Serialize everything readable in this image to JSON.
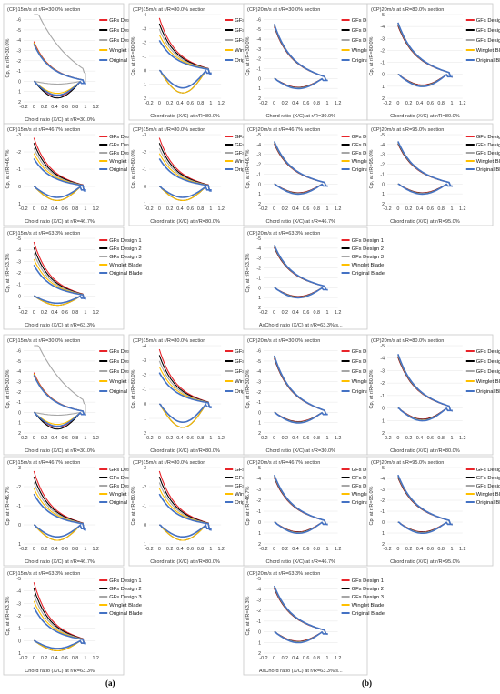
{
  "figure": {
    "label_a": "(a)",
    "label_b": "(b)"
  },
  "colors": {
    "gfs1": "#e8242a",
    "gfs2": "#000000",
    "gfs3": "#a6a6a6",
    "winglet": "#ffc000",
    "original": "#4472c4",
    "grid": "#e6e6e6",
    "frame": "#c8c8c8"
  },
  "legend": [
    "GFs Design 1",
    "GFs Design 2",
    "GFs Design 3",
    "Winglet Blade",
    "Original Blade"
  ],
  "x_ticks": [
    "-0.2",
    "0",
    "0.2",
    "0.4",
    "0.6",
    "0.8",
    "1",
    "1.2"
  ],
  "chart_data": [
    {
      "type": "line",
      "title": "(CP)15m/s at r/R=30.0% section",
      "xlabel": "Chord ratio (X/C) at r/R=30.0%",
      "ylabel": "Cp, at r/R=30.0%",
      "y_ticks": [
        "-6",
        "-5",
        "-4",
        "-3",
        "-2",
        "-1",
        "0",
        "1",
        "2"
      ],
      "xlim": [
        -0.2,
        1.2
      ],
      "ylim": [
        -6.5,
        2
      ],
      "legend_position": "right"
    },
    {
      "type": "line",
      "title": "(CP)15m/s at r/R=80.0% section",
      "xlabel": "Chord ratio (X/C) at r/R=80.0%",
      "ylabel": "Cp, at r/R=80.0%",
      "y_ticks": [
        "-4",
        "-3",
        "-2",
        "-1",
        "0",
        "1",
        "2"
      ],
      "xlim": [
        -0.2,
        1.2
      ],
      "ylim": [
        -4,
        2
      ],
      "legend_position": "top-right"
    },
    {
      "type": "line",
      "title": "(CP)20m/s at r/R=30.0% section",
      "xlabel": "Chord ratio (X/C) at r/R=30.0%",
      "ylabel": "Cp, at r/R=30.0%",
      "y_ticks": [
        "-6",
        "-5",
        "-4",
        "-3",
        "-2",
        "-1",
        "0",
        "1",
        "2"
      ],
      "xlim": [
        -0.2,
        1.2
      ],
      "ylim": [
        -6.5,
        2
      ],
      "legend_position": "top-right"
    },
    {
      "type": "line",
      "title": "(CP)20m/s at r/R=80.0% section",
      "xlabel": "Chord ratio (X/C) at r/R=80.0%",
      "ylabel": "Cp, at r/R=80.0%",
      "y_ticks": [
        "-5",
        "-4",
        "-3",
        "-2",
        "-1",
        "0",
        "1",
        "2"
      ],
      "xlim": [
        -0.2,
        1.2
      ],
      "ylim": [
        -5,
        2
      ],
      "legend_position": "top-right"
    },
    {
      "type": "line",
      "title": "(CP)15m/s at r/R=46.7% section",
      "xlabel": "Chord ratio (X/C) at r/R=46.7%",
      "ylabel": "Cp, at r/R=46.7%",
      "y_ticks": [
        "-3",
        "-2",
        "-1",
        "0",
        "1"
      ],
      "xlim": [
        -0.2,
        1.2
      ],
      "ylim": [
        -3,
        1
      ],
      "legend_position": "top-right"
    },
    {
      "type": "line",
      "title": "(CP)15m/s at r/R=80.0% section",
      "xlabel": "Chord ratio (X/C) at r/R=80.0%",
      "ylabel": "Cp, at r/R=80.0%",
      "y_ticks": [
        "-3",
        "-2",
        "-1",
        "0",
        "1"
      ],
      "xlim": [
        -0.2,
        1.2
      ],
      "ylim": [
        -3,
        1
      ],
      "legend_position": "top-right"
    },
    {
      "type": "line",
      "title": "(CP)20m/s at r/R=46.7% section",
      "xlabel": "Chord ratio (X/C) at r/R=46.7%",
      "ylabel": "Cp, at r/R=46.7%",
      "y_ticks": [
        "-5",
        "-4",
        "-3",
        "-2",
        "-1",
        "0",
        "1",
        "2"
      ],
      "xlim": [
        -0.2,
        1.2
      ],
      "ylim": [
        -5,
        2
      ],
      "legend_position": "top-right"
    },
    {
      "type": "line",
      "title": "(CP)20m/s at r/R=95.0% section",
      "xlabel": "Chord ratio (X/C) at r/R=95.0%",
      "ylabel": "Cp, at r/R=95.0%",
      "y_ticks": [
        "-5",
        "-4",
        "-3",
        "-2",
        "-1",
        "0",
        "1",
        "2"
      ],
      "xlim": [
        -0.2,
        1.2
      ],
      "ylim": [
        -5,
        2
      ],
      "legend_position": "top-right"
    },
    {
      "type": "line",
      "title": "(CP)15m/s at r/R=63.3% section",
      "xlabel": "Chord ratio (X/C) at r/R=63.3%",
      "ylabel": "Cp, at r/R=63.3%",
      "y_ticks": [
        "-5",
        "-4",
        "-3",
        "-2",
        "-1",
        "0",
        "1"
      ],
      "xlim": [
        -0.2,
        1.2
      ],
      "ylim": [
        -5,
        1
      ],
      "legend_position": "top-right"
    },
    {
      "type": "line",
      "title": "(CP)20m/s at r/R=63.3% section",
      "xlabel": "AxChord ratio (X/C) at r/R=63.3%is...",
      "ylabel": "Cp, at r/R=63.3%",
      "y_ticks": [
        "-5",
        "-4",
        "-3",
        "-2",
        "-1",
        "0",
        "1",
        "2"
      ],
      "xlim": [
        -0.2,
        1.2
      ],
      "ylim": [
        -5,
        2
      ],
      "legend_position": "top-right"
    },
    {
      "type": "line",
      "title": "(CP)15m/s at r/R=30.0% section",
      "xlabel": "Chord ratio (X/C) at r/R=30.0%",
      "ylabel": "Cp, at r/R=30.0%",
      "y_ticks": [
        "-6",
        "-5",
        "-4",
        "-3",
        "-2",
        "-1",
        "0",
        "1",
        "2"
      ],
      "xlim": [
        -0.2,
        1.2
      ],
      "ylim": [
        -6.5,
        2
      ],
      "legend_position": "right"
    },
    {
      "type": "line",
      "title": "(CP)15m/s at r/R=80.0% section",
      "xlabel": "Chord ratio (X/C) at r/R=80.0%",
      "ylabel": "Cp, at r/R=80.0%",
      "y_ticks": [
        "-4",
        "-3",
        "-2",
        "-1",
        "0",
        "1",
        "2"
      ],
      "xlim": [
        -0.2,
        1.2
      ],
      "ylim": [
        -4,
        2
      ],
      "legend_position": "top-right"
    },
    {
      "type": "line",
      "title": "(CP)20m/s at r/R=30.0% section",
      "xlabel": "Chord ratio (X/C) at r/R=30.0%",
      "ylabel": "Cp, at r/R=30.0%",
      "y_ticks": [
        "-6",
        "-5",
        "-4",
        "-3",
        "-2",
        "-1",
        "0",
        "1",
        "2"
      ],
      "xlim": [
        -0.2,
        1.2
      ],
      "ylim": [
        -6.5,
        2
      ],
      "legend_position": "top-right"
    },
    {
      "type": "line",
      "title": "(CP)20m/s at r/R=80.0% section",
      "xlabel": "Chord ratio (X/C) at r/R=80.0%",
      "ylabel": "Cp, at r/R=80.0%",
      "y_ticks": [
        "-5",
        "-4",
        "-3",
        "-2",
        "-1",
        "0",
        "1",
        "2"
      ],
      "xlim": [
        -0.2,
        1.2
      ],
      "ylim": [
        -5,
        2
      ],
      "legend_position": "top-right"
    },
    {
      "type": "line",
      "title": "(CP)15m/s at r/R=46.7% section",
      "xlabel": "Chord ratio (X/C) at r/R=46.7%",
      "ylabel": "Cp, at r/R=46.7%",
      "y_ticks": [
        "-3",
        "-2",
        "-1",
        "0",
        "1"
      ],
      "xlim": [
        -0.2,
        1.2
      ],
      "ylim": [
        -3,
        1
      ],
      "legend_position": "top-right"
    },
    {
      "type": "line",
      "title": "(CP)15m/s at r/R=80.0% section",
      "xlabel": "Chord ratio (X/C) at r/R=80.0%",
      "ylabel": "Cp, at r/R=80.0%",
      "y_ticks": [
        "-3",
        "-2",
        "-1",
        "0",
        "1"
      ],
      "xlim": [
        -0.2,
        1.2
      ],
      "ylim": [
        -3,
        1
      ],
      "legend_position": "top-right"
    },
    {
      "type": "line",
      "title": "(CP)20m/s at r/R=46.7% section",
      "xlabel": "Chord ratio (X/C) at r/R=46.7%",
      "ylabel": "Cp, at r/R=46.7%",
      "y_ticks": [
        "-5",
        "-4",
        "-3",
        "-2",
        "-1",
        "0",
        "1",
        "2"
      ],
      "xlim": [
        -0.2,
        1.2
      ],
      "ylim": [
        -5,
        2
      ],
      "legend_position": "top-right"
    },
    {
      "type": "line",
      "title": "(CP)20m/s at r/R=95.0% section",
      "xlabel": "Chord ratio (X/C) at r/R=95.0%",
      "ylabel": "Cp, at r/R=95.0%",
      "y_ticks": [
        "-5",
        "-4",
        "-3",
        "-2",
        "-1",
        "0",
        "1",
        "2"
      ],
      "xlim": [
        -0.2,
        1.2
      ],
      "ylim": [
        -5,
        2
      ],
      "legend_position": "top-right"
    },
    {
      "type": "line",
      "title": "(CP)15m/s at r/R=63.3% section",
      "xlabel": "Chord ratio (X/C) at r/R=63.3%",
      "ylabel": "Cp, at r/R=63.3%",
      "y_ticks": [
        "-5",
        "-4",
        "-3",
        "-2",
        "-1",
        "0",
        "1"
      ],
      "xlim": [
        -0.2,
        1.2
      ],
      "ylim": [
        -5,
        1
      ],
      "legend_position": "top-right"
    },
    {
      "type": "line",
      "title": "(CP)20m/s at r/R=63.3% section",
      "xlabel": "AxChord ratio (X/C) at r/R=63.3%is...",
      "ylabel": "Cp, at r/R=63.3%",
      "y_ticks": [
        "-5",
        "-4",
        "-3",
        "-2",
        "-1",
        "0",
        "1",
        "2"
      ],
      "xlim": [
        -0.2,
        1.2
      ],
      "ylim": [
        -5,
        2
      ],
      "legend_position": "top-right"
    }
  ]
}
